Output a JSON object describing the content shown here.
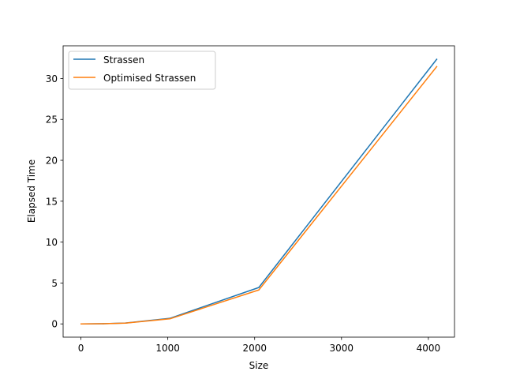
{
  "chart_data": {
    "type": "line",
    "title": "",
    "xlabel": "Size",
    "ylabel": "Elapsed Time",
    "xlim": [
      -205,
      4301
    ],
    "ylim": [
      -1.62,
      34.0
    ],
    "xticks": [
      0,
      1000,
      2000,
      3000,
      4000
    ],
    "yticks": [
      0,
      5,
      10,
      15,
      20,
      25,
      30
    ],
    "grid": false,
    "legend_position": "upper left",
    "series": [
      {
        "name": "Strassen",
        "color": "#1f77b4",
        "x": [
          2,
          256,
          512,
          1024,
          2048,
          4096
        ],
        "y": [
          0.0,
          0.02,
          0.1,
          0.68,
          4.45,
          32.35
        ]
      },
      {
        "name": "Optimised Strassen",
        "color": "#ff7f0e",
        "x": [
          2,
          256,
          512,
          1024,
          2048,
          4096
        ],
        "y": [
          0.0,
          0.02,
          0.09,
          0.62,
          4.15,
          31.45
        ]
      }
    ]
  }
}
